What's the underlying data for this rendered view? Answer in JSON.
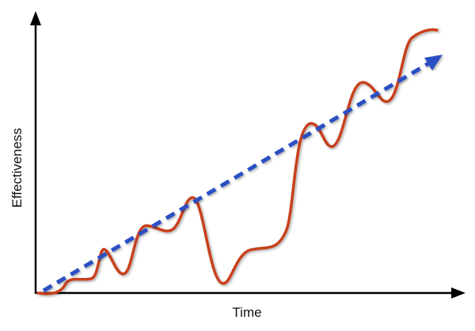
{
  "x_axis": {
    "label": "Time"
  },
  "y_axis": {
    "label": "Effectiveness"
  }
}
